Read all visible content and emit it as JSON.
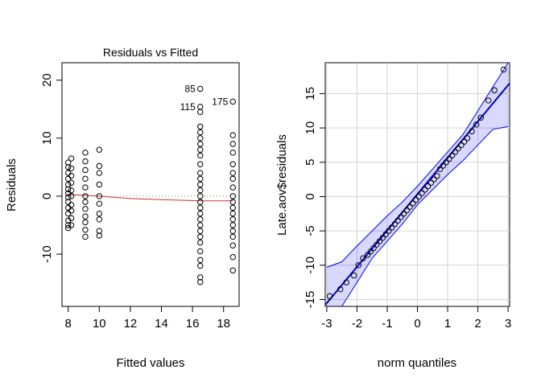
{
  "chart_data": [
    {
      "type": "scatter",
      "title": "Residuals vs Fitted",
      "xlabel": "Fitted values",
      "ylabel": "Residuals",
      "xlim": [
        7.6,
        19.0
      ],
      "ylim": [
        -19,
        23
      ],
      "xticks": [
        8,
        10,
        12,
        14,
        16,
        18
      ],
      "yticks": [
        -10,
        0,
        10,
        20
      ],
      "reference_line": {
        "y": 0,
        "style": "dotted"
      },
      "smooth_line": {
        "x": [
          8.0,
          10.0,
          12.0,
          14.0,
          16.5,
          18.6
        ],
        "y": [
          0.3,
          0.0,
          -0.4,
          -0.6,
          -0.8,
          -0.8
        ],
        "color": "#cc3333"
      },
      "point_labels": [
        {
          "text": "85",
          "x": 16.5,
          "y": 18.5
        },
        {
          "text": "115",
          "x": 16.5,
          "y": 15.4
        },
        {
          "text": "175",
          "x": 18.6,
          "y": 16.3
        }
      ],
      "groups": [
        {
          "x": 8.0,
          "y": [
            5.8,
            5.0,
            4.0,
            3.0,
            2.0,
            1.2,
            0.5,
            -0.2,
            -1.0,
            -2.0,
            -3.0,
            -4.2,
            -5.0,
            -5.5
          ]
        },
        {
          "x": 8.2,
          "y": [
            6.5,
            4.8,
            3.5,
            2.3,
            1.0,
            0.0,
            -1.5,
            -2.5,
            -3.8,
            -5.0
          ]
        },
        {
          "x": 9.1,
          "y": [
            7.5,
            6.0,
            4.5,
            3.0,
            1.5,
            0.0,
            -1.0,
            -2.2,
            -3.5,
            -4.5,
            -5.8,
            -7.0
          ]
        },
        {
          "x": 10.0,
          "y": [
            8.0,
            5.2,
            4.0,
            2.0,
            0.0,
            -1.3,
            -3.0,
            -4.0,
            -6.0,
            -6.8
          ]
        },
        {
          "x": 16.5,
          "y": [
            18.5,
            15.4,
            14.5,
            12.0,
            11.0,
            10.0,
            9.0,
            8.0,
            7.0,
            5.5,
            4.0,
            3.0,
            2.0,
            1.0,
            0.0,
            -1.0,
            -2.0,
            -3.0,
            -4.0,
            -5.0,
            -6.0,
            -7.0,
            -8.0,
            -9.5,
            -11.0,
            -12.0,
            -14.0,
            -14.8
          ]
        },
        {
          "x": 18.6,
          "y": [
            16.3,
            10.5,
            9.0,
            7.5,
            5.5,
            4.0,
            3.0,
            1.5,
            0.0,
            -1.0,
            -2.0,
            -3.0,
            -4.0,
            -5.0,
            -6.0,
            -7.0,
            -8.5,
            -10.5,
            -12.8
          ]
        }
      ]
    },
    {
      "type": "scatter",
      "title": "",
      "xlabel": "norm quantiles",
      "ylabel": "Late.aov$residuals",
      "xlim": [
        -3.05,
        3.05
      ],
      "ylim": [
        -16,
        19.5
      ],
      "xticks": [
        -3,
        -2,
        -1,
        0,
        1,
        2,
        3
      ],
      "yticks": [
        -15,
        -10,
        -5,
        0,
        5,
        10,
        15
      ],
      "grid": true,
      "reference_line": {
        "x": [
          -3.05,
          3.05
        ],
        "y": [
          -15.8,
          16.5
        ],
        "color": "#0000cc"
      },
      "confidence_band": {
        "x": [
          -3.0,
          -2.5,
          -2.0,
          -1.5,
          -1.0,
          -0.5,
          0.0,
          0.5,
          1.0,
          1.5,
          2.0,
          2.5,
          3.0
        ],
        "upper": [
          -10.3,
          -9.5,
          -7.2,
          -5.0,
          -2.8,
          -0.8,
          1.5,
          4.0,
          6.5,
          9.0,
          12.5,
          16.0,
          20.0
        ],
        "lower": [
          -19.0,
          -16.0,
          -12.5,
          -9.0,
          -6.5,
          -4.0,
          -1.2,
          1.0,
          3.2,
          5.2,
          7.5,
          9.8,
          10.2
        ],
        "color": "#0000ff"
      },
      "points": {
        "x": [
          -2.9,
          -2.55,
          -2.35,
          -2.1,
          -1.95,
          -1.8,
          -1.65,
          -1.55,
          -1.45,
          -1.35,
          -1.25,
          -1.15,
          -1.05,
          -0.95,
          -0.85,
          -0.75,
          -0.65,
          -0.55,
          -0.45,
          -0.35,
          -0.25,
          -0.15,
          -0.05,
          0.05,
          0.15,
          0.25,
          0.35,
          0.45,
          0.55,
          0.65,
          0.75,
          0.85,
          0.95,
          1.05,
          1.15,
          1.25,
          1.35,
          1.45,
          1.55,
          1.65,
          1.8,
          1.95,
          2.1,
          2.35,
          2.55,
          2.85
        ],
        "y": [
          -14.5,
          -13.5,
          -12.5,
          -11.5,
          -10.0,
          -9.0,
          -8.5,
          -8.0,
          -7.5,
          -7.0,
          -6.5,
          -6.0,
          -5.5,
          -5.0,
          -4.5,
          -4.0,
          -3.5,
          -3.0,
          -2.5,
          -2.0,
          -1.5,
          -1.0,
          -0.5,
          0.0,
          0.5,
          1.0,
          1.5,
          2.0,
          2.5,
          3.0,
          4.0,
          4.5,
          5.0,
          5.5,
          6.0,
          6.5,
          7.0,
          7.5,
          8.0,
          8.5,
          9.5,
          10.5,
          11.5,
          14.0,
          15.5,
          18.5
        ]
      }
    }
  ]
}
